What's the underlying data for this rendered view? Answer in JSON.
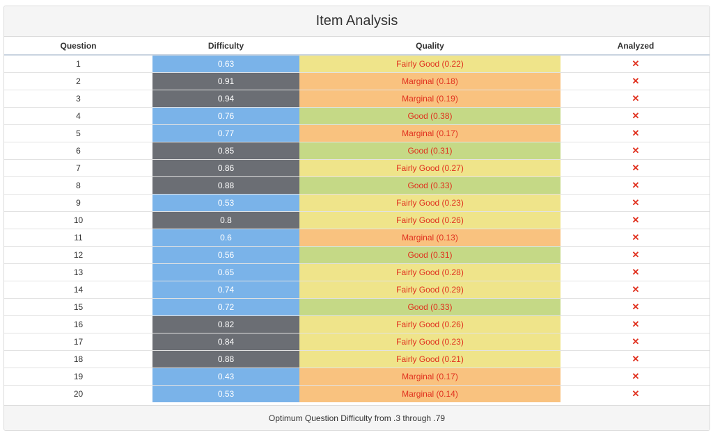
{
  "panel": {
    "title": "Item Analysis",
    "footer": "Optimum Question Difficulty from .3 through .79"
  },
  "columns": {
    "question": "Question",
    "difficulty": "Difficulty",
    "quality": "Quality",
    "analyzed": "Analyzed"
  },
  "colors": {
    "difficulty_in_range": "#7ab3e9",
    "difficulty_out_range": "#6b6e74",
    "quality_good": "#c5d986",
    "quality_fairly_good": "#efe48a",
    "quality_marginal": "#f9c27f",
    "quality_text": "#e0301e"
  },
  "rows": [
    {
      "question": "1",
      "difficulty": "0.63",
      "diff_class": "in-range",
      "quality": "Fairly Good (0.22)",
      "qual_class": "fairly",
      "analyzed": "✕"
    },
    {
      "question": "2",
      "difficulty": "0.91",
      "diff_class": "out-range",
      "quality": "Marginal (0.18)",
      "qual_class": "marginal",
      "analyzed": "✕"
    },
    {
      "question": "3",
      "difficulty": "0.94",
      "diff_class": "out-range",
      "quality": "Marginal (0.19)",
      "qual_class": "marginal",
      "analyzed": "✕"
    },
    {
      "question": "4",
      "difficulty": "0.76",
      "diff_class": "in-range",
      "quality": "Good (0.38)",
      "qual_class": "good",
      "analyzed": "✕"
    },
    {
      "question": "5",
      "difficulty": "0.77",
      "diff_class": "in-range",
      "quality": "Marginal (0.17)",
      "qual_class": "marginal",
      "analyzed": "✕"
    },
    {
      "question": "6",
      "difficulty": "0.85",
      "diff_class": "out-range",
      "quality": "Good (0.31)",
      "qual_class": "good",
      "analyzed": "✕"
    },
    {
      "question": "7",
      "difficulty": "0.86",
      "diff_class": "out-range",
      "quality": "Fairly Good (0.27)",
      "qual_class": "fairly",
      "analyzed": "✕"
    },
    {
      "question": "8",
      "difficulty": "0.88",
      "diff_class": "out-range",
      "quality": "Good (0.33)",
      "qual_class": "good",
      "analyzed": "✕"
    },
    {
      "question": "9",
      "difficulty": "0.53",
      "diff_class": "in-range",
      "quality": "Fairly Good (0.23)",
      "qual_class": "fairly",
      "analyzed": "✕"
    },
    {
      "question": "10",
      "difficulty": "0.8",
      "diff_class": "out-range",
      "quality": "Fairly Good (0.26)",
      "qual_class": "fairly",
      "analyzed": "✕"
    },
    {
      "question": "11",
      "difficulty": "0.6",
      "diff_class": "in-range",
      "quality": "Marginal (0.13)",
      "qual_class": "marginal",
      "analyzed": "✕"
    },
    {
      "question": "12",
      "difficulty": "0.56",
      "diff_class": "in-range",
      "quality": "Good (0.31)",
      "qual_class": "good",
      "analyzed": "✕"
    },
    {
      "question": "13",
      "difficulty": "0.65",
      "diff_class": "in-range",
      "quality": "Fairly Good (0.28)",
      "qual_class": "fairly",
      "analyzed": "✕"
    },
    {
      "question": "14",
      "difficulty": "0.74",
      "diff_class": "in-range",
      "quality": "Fairly Good (0.29)",
      "qual_class": "fairly",
      "analyzed": "✕"
    },
    {
      "question": "15",
      "difficulty": "0.72",
      "diff_class": "in-range",
      "quality": "Good (0.33)",
      "qual_class": "good",
      "analyzed": "✕"
    },
    {
      "question": "16",
      "difficulty": "0.82",
      "diff_class": "out-range",
      "quality": "Fairly Good (0.26)",
      "qual_class": "fairly",
      "analyzed": "✕"
    },
    {
      "question": "17",
      "difficulty": "0.84",
      "diff_class": "out-range",
      "quality": "Fairly Good (0.23)",
      "qual_class": "fairly",
      "analyzed": "✕"
    },
    {
      "question": "18",
      "difficulty": "0.88",
      "diff_class": "out-range",
      "quality": "Fairly Good (0.21)",
      "qual_class": "fairly",
      "analyzed": "✕"
    },
    {
      "question": "19",
      "difficulty": "0.43",
      "diff_class": "in-range",
      "quality": "Marginal (0.17)",
      "qual_class": "marginal",
      "analyzed": "✕"
    },
    {
      "question": "20",
      "difficulty": "0.53",
      "diff_class": "in-range",
      "quality": "Marginal (0.14)",
      "qual_class": "marginal",
      "analyzed": "✕"
    }
  ]
}
